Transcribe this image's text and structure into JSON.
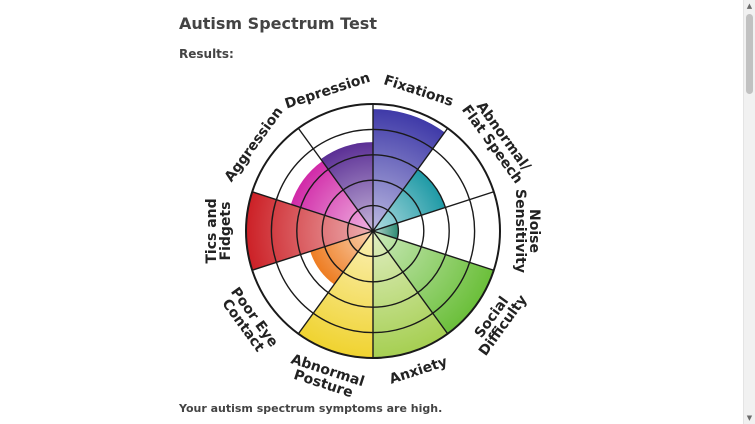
{
  "page": {
    "title": "Autism Spectrum Test",
    "results_label": "Results:",
    "summary": "Your autism spectrum symptoms are high."
  },
  "chart_data": {
    "type": "polar-area",
    "max_level": 5,
    "categories": [
      {
        "label_lines": [
          "Fixations"
        ],
        "level": 4.8,
        "color": "#3f3aa8"
      },
      {
        "label_lines": [
          "Abnormal/",
          "Flat Speech"
        ],
        "level": 3.0,
        "color": "#1f9aa6"
      },
      {
        "label_lines": [
          "Noise",
          "Sensitivity"
        ],
        "level": 1.0,
        "color": "#2e8b74"
      },
      {
        "label_lines": [
          "Social",
          "Difficulty"
        ],
        "level": 5.0,
        "color": "#6bbf3a"
      },
      {
        "label_lines": [
          "Anxiety"
        ],
        "level": 5.0,
        "color": "#a6cf52"
      },
      {
        "label_lines": [
          "Abnormal",
          "Posture"
        ],
        "level": 5.0,
        "color": "#f0d330"
      },
      {
        "label_lines": [
          "Poor Eye",
          "Contact"
        ],
        "level": 2.6,
        "color": "#ee7d22"
      },
      {
        "label_lines": [
          "Tics and",
          "Fidgets"
        ],
        "level": 5.0,
        "color": "#cc2026"
      },
      {
        "label_lines": [
          "Aggression"
        ],
        "level": 3.4,
        "color": "#d12aa8"
      },
      {
        "label_lines": [
          "Depression"
        ],
        "level": 3.5,
        "color": "#5b2f95"
      }
    ]
  }
}
